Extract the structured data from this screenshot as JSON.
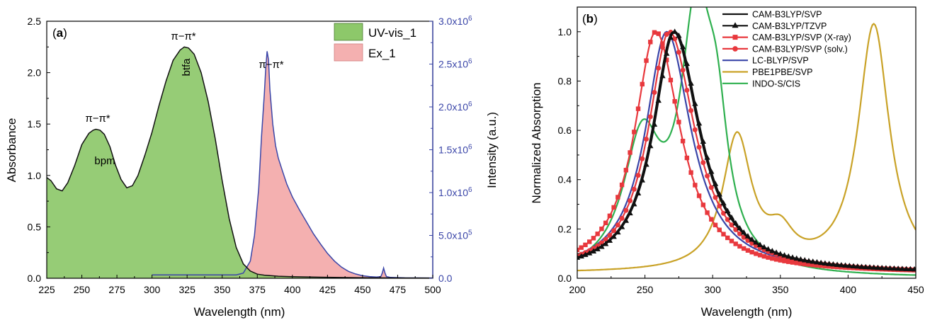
{
  "chart_data": [
    {
      "panel_label": "a",
      "type": "area",
      "xlabel": "Wavelength (nm)",
      "ylabel": "Absorbance",
      "y2label": "Intensity (a.u.)",
      "xlim": [
        225,
        500
      ],
      "ylim": [
        0,
        2.5
      ],
      "y2lim": [
        0,
        3000000
      ],
      "xticks": [
        "225",
        "250",
        "275",
        "300",
        "325",
        "350",
        "375",
        "400",
        "425",
        "450",
        "475",
        "500"
      ],
      "yticks": [
        "0.0",
        "0.5",
        "1.0",
        "1.5",
        "2.0",
        "2.5"
      ],
      "y2ticks": [
        {
          "mant": "0.0",
          "exp": ""
        },
        {
          "mant": "5.0x10",
          "exp": "5"
        },
        {
          "mant": "1.0x10",
          "exp": "6"
        },
        {
          "mant": "1.5x10",
          "exp": "6"
        },
        {
          "mant": "2.0x10",
          "exp": "6"
        },
        {
          "mant": "2.5x10",
          "exp": "6"
        },
        {
          "mant": "3.0x10",
          "exp": "6"
        }
      ],
      "legend": {
        "position": "top-right",
        "entries": [
          "UV-vis_1",
          "Ex_1"
        ]
      },
      "colors": {
        "uvvis_fill": "#8dc86a",
        "uvvis_line": "#111111",
        "ex_fill": "#f4b0b0",
        "ex_line": "#3a45a8",
        "right_axis": "#3a45a8"
      },
      "series": [
        {
          "name": "UV-vis_1",
          "axis": "left",
          "x": [
            225,
            228,
            232,
            236,
            240,
            245,
            250,
            255,
            258,
            260,
            263,
            266,
            270,
            274,
            278,
            282,
            286,
            290,
            295,
            300,
            305,
            310,
            315,
            320,
            323,
            326,
            330,
            335,
            340,
            345,
            350,
            355,
            360,
            365,
            370,
            375,
            380,
            385,
            390,
            400,
            420,
            450,
            475,
            500
          ],
          "y": [
            0.98,
            0.95,
            0.87,
            0.85,
            0.93,
            1.1,
            1.3,
            1.41,
            1.44,
            1.45,
            1.44,
            1.4,
            1.28,
            1.1,
            0.96,
            0.88,
            0.9,
            1.0,
            1.2,
            1.42,
            1.68,
            1.92,
            2.12,
            2.22,
            2.25,
            2.24,
            2.18,
            2.0,
            1.72,
            1.36,
            0.95,
            0.58,
            0.3,
            0.14,
            0.07,
            0.04,
            0.03,
            0.025,
            0.02,
            0.015,
            0.01,
            0.005,
            0.003,
            0.002
          ]
        },
        {
          "name": "Ex_1",
          "axis": "right",
          "x": [
            300,
            340,
            360,
            365,
            370,
            373,
            376,
            378,
            380,
            381,
            382,
            383,
            384,
            386,
            388,
            390,
            393,
            396,
            400,
            405,
            410,
            415,
            420,
            425,
            430,
            435,
            440,
            445,
            450,
            455,
            460,
            463,
            464,
            465,
            466,
            467,
            470,
            480,
            500
          ],
          "y": [
            40000,
            40000,
            40000,
            60000,
            200000,
            500000,
            1050000,
            1650000,
            2150000,
            2450000,
            2650000,
            2550000,
            2200000,
            1800000,
            1550000,
            1400000,
            1250000,
            1100000,
            950000,
            800000,
            660000,
            520000,
            400000,
            290000,
            200000,
            130000,
            80000,
            50000,
            30000,
            20000,
            15000,
            20000,
            60000,
            120000,
            60000,
            20000,
            10000,
            5000,
            3000
          ]
        }
      ],
      "annotations": [
        "π−π*",
        "bpm",
        "π−π*",
        "btfa",
        "π−π*"
      ]
    },
    {
      "panel_label": "b",
      "type": "line",
      "xlabel": "Wavelength (nm)",
      "ylabel": "Normalized Absorption",
      "xlim": [
        200,
        450
      ],
      "ylim": [
        0,
        1.1
      ],
      "xticks": [
        "200",
        "250",
        "300",
        "350",
        "400",
        "450"
      ],
      "yticks": [
        "0.0",
        "0.2",
        "0.4",
        "0.6",
        "0.8",
        "1.0"
      ],
      "legend": {
        "position": "top-right"
      },
      "series": [
        {
          "name": "CAM-B3LYP/SVP",
          "color": "#111111",
          "marker": "none",
          "peak": 271,
          "wl": 19,
          "wr": 23
        },
        {
          "name": "CAM-B3LYP/TZVP",
          "color": "#111111",
          "marker": "triangle",
          "peak": 272,
          "wl": 19,
          "wr": 23
        },
        {
          "name": "CAM-B3LYP/SVP (X-ray)",
          "color": "#e8383d",
          "marker": "square",
          "peak": 258,
          "wl": 19,
          "wr": 22
        },
        {
          "name": "CAM-B3LYP/SVP (solv.)",
          "color": "#e8383d",
          "marker": "circle",
          "peak": 268,
          "wl": 19,
          "wr": 23
        },
        {
          "name": "LC-BLYP/SVP",
          "color": "#3a45a8",
          "marker": "none",
          "peak": 266,
          "wl": 19,
          "wr": 22
        },
        {
          "name": "PBE1PBE/SVP",
          "color": "#c9a227",
          "marker": "none",
          "peaks": [
            [
              318,
              0.54,
              13
            ],
            [
              350,
              0.12,
              12
            ],
            [
              419,
              1.0,
              14
            ]
          ],
          "baseline": 0.02
        },
        {
          "name": "INDO-S/CIS",
          "color": "#2fb04f",
          "marker": "none",
          "peaks": [
            [
              248,
              0.52,
              17
            ],
            [
              288,
              0.99,
              14
            ],
            [
              303,
              0.42,
              10
            ]
          ],
          "baseline": 0.0
        }
      ]
    }
  ]
}
